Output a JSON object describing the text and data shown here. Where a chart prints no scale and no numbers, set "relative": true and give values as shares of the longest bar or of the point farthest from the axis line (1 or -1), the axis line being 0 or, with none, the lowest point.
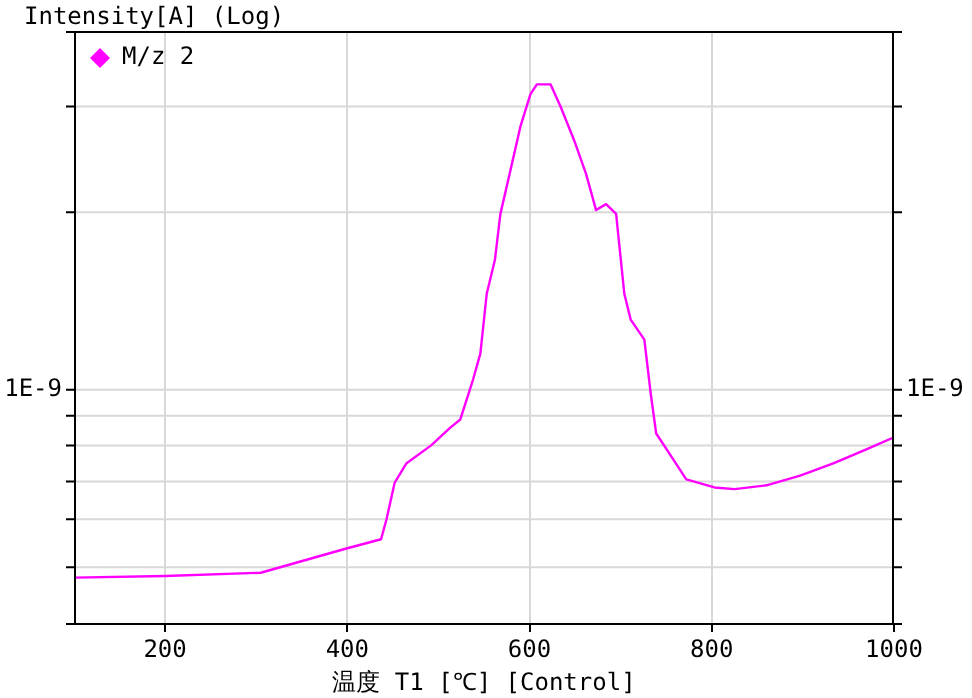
{
  "chart_data": {
    "type": "line",
    "xlabel": "温度 T1 [℃] [Control]",
    "ylabel": "Intensity[A] (Log)",
    "relative": true,
    "grid": "x",
    "legend": "top left",
    "line_style": "solid",
    "xlim": [
      100,
      1000
    ],
    "xticks": [
      200,
      400,
      600,
      800,
      1000
    ],
    "ref_lines": [
      {
        "axis": "y",
        "value": 0.105,
        "color": "#d8d8d8"
      },
      {
        "axis": "y",
        "value": 0.194,
        "color": "#d8d8d8"
      },
      {
        "axis": "y",
        "value": 0.264,
        "color": "#d8d8d8"
      },
      {
        "axis": "y",
        "value": 0.331,
        "color": "#d8d8d8"
      },
      {
        "axis": "y",
        "value": 0.386,
        "color": "#d8d8d8"
      },
      {
        "axis": "y",
        "value": 0.434,
        "color": "#d8d8d8"
      },
      {
        "axis": "y",
        "value": 0.763,
        "color": "#d8d8d8"
      },
      {
        "axis": "y",
        "value": 0.959,
        "color": "#d8d8d8"
      },
      {
        "axis": "y",
        "value": 1.097,
        "color": "#000000"
      }
    ],
    "annotations": [
      {
        "text": "1E-9",
        "x": 100,
        "y": 0.434
      },
      {
        "text": "1E-9",
        "x": 1000,
        "y": 0.434
      }
    ],
    "x": [
      100,
      200,
      305,
      397,
      437,
      443,
      452,
      465,
      492,
      513,
      524,
      538,
      546,
      553,
      562,
      568,
      575,
      590,
      601,
      608,
      623,
      634,
      649,
      662,
      673,
      684,
      695,
      704,
      711,
      726,
      733,
      739,
      755,
      772,
      803,
      825,
      860,
      897,
      934,
      969,
      1000
    ],
    "series": [
      {
        "name": "M/z 2",
        "color": "#ff00ff",
        "values": [
          0.086,
          0.089,
          0.095,
          0.139,
          0.157,
          0.194,
          0.262,
          0.298,
          0.331,
          0.364,
          0.379,
          0.453,
          0.501,
          0.612,
          0.675,
          0.76,
          0.811,
          0.922,
          0.982,
          1,
          1,
          0.959,
          0.896,
          0.834,
          0.767,
          0.778,
          0.76,
          0.612,
          0.564,
          0.527,
          0.427,
          0.353,
          0.312,
          0.268,
          0.253,
          0.25,
          0.257,
          0.275,
          0.298,
          0.323,
          0.346
        ]
      }
    ]
  }
}
